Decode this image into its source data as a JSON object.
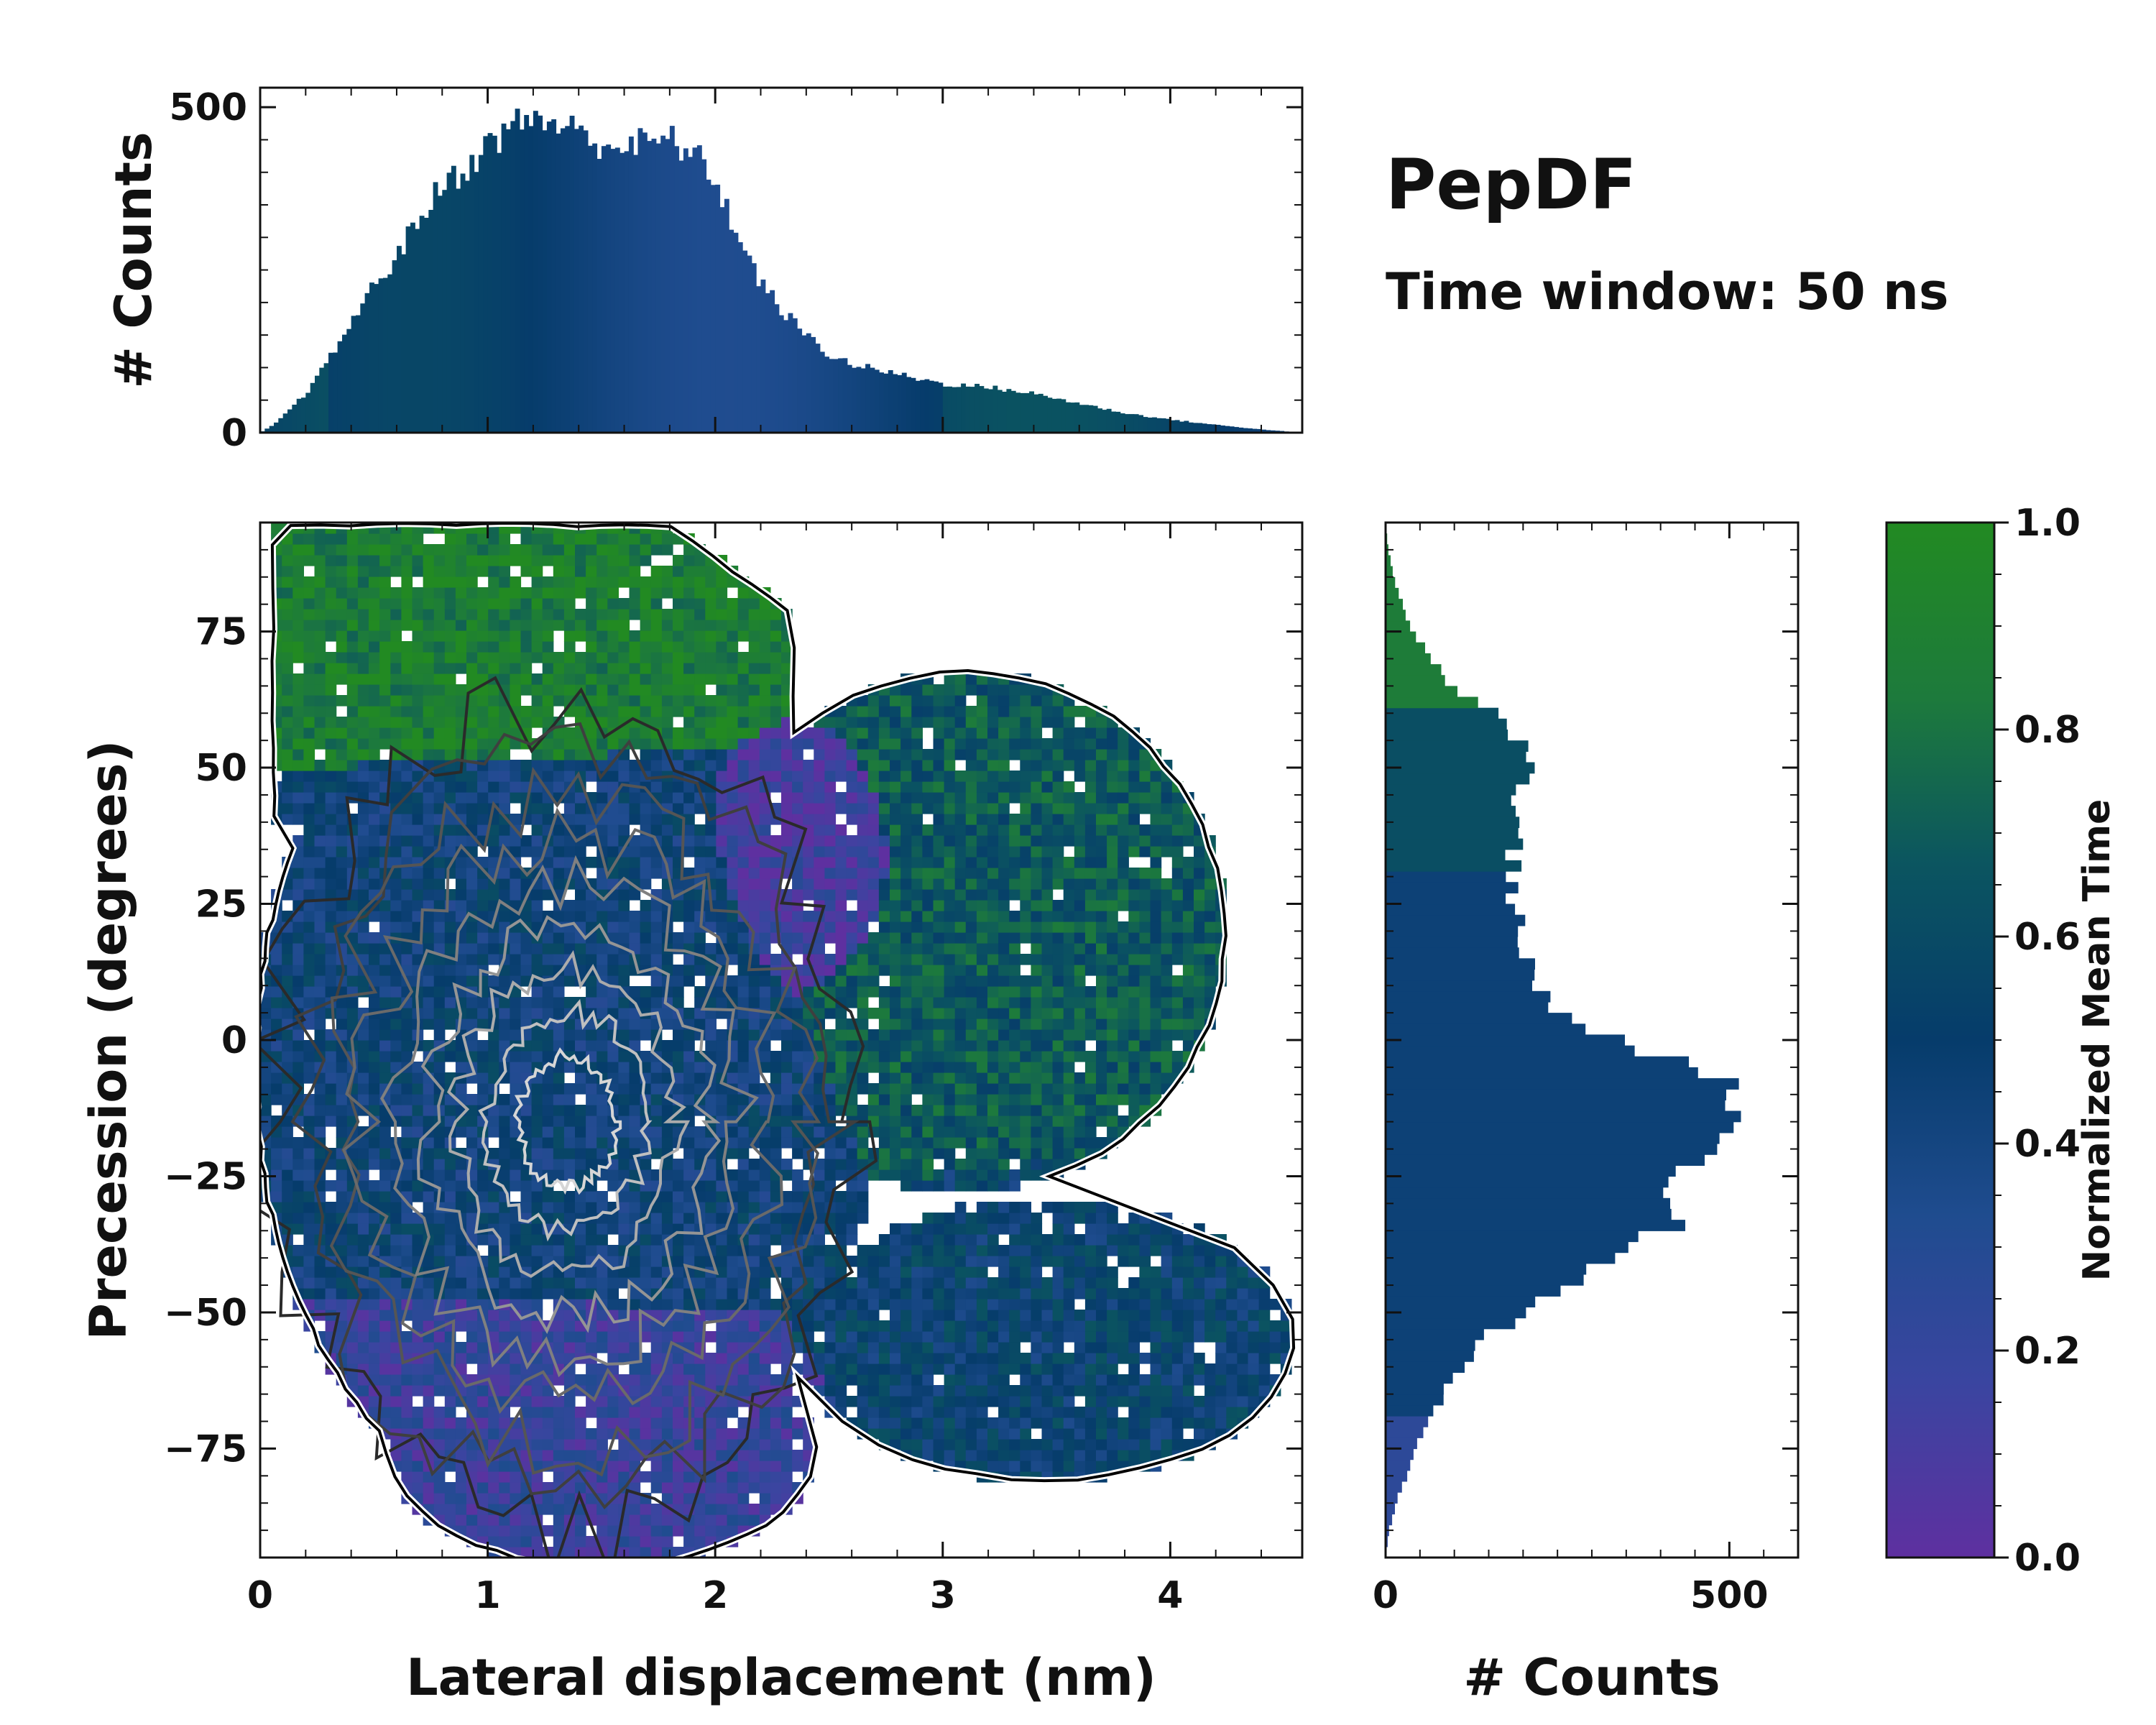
{
  "chart_data": [
    {
      "id": "top-histogram",
      "type": "bar",
      "description_axis": "Lateral displacement histogram",
      "ylabel": "# Counts",
      "xlim": [
        0,
        4.58
      ],
      "ylim": [
        0,
        530
      ],
      "yticks": [
        0,
        500
      ],
      "bin_width": 0.02,
      "profile_x": [
        0.0,
        0.05,
        0.1,
        0.2,
        0.3,
        0.4,
        0.5,
        0.6,
        0.7,
        0.8,
        0.9,
        1.0,
        1.1,
        1.2,
        1.3,
        1.4,
        1.5,
        1.6,
        1.7,
        1.8,
        1.9,
        2.0,
        2.1,
        2.2,
        2.3,
        2.4,
        2.5,
        2.6,
        2.8,
        3.0,
        3.2,
        3.4,
        3.6,
        3.8,
        4.0,
        4.2,
        4.4,
        4.58
      ],
      "profile_counts": [
        0,
        10,
        25,
        60,
        110,
        170,
        225,
        270,
        330,
        380,
        405,
        440,
        470,
        485,
        475,
        460,
        445,
        440,
        445,
        450,
        430,
        390,
        300,
        230,
        185,
        150,
        120,
        105,
        90,
        75,
        70,
        60,
        45,
        30,
        20,
        12,
        5,
        0
      ],
      "color_note": "bars colored by normalized mean time"
    },
    {
      "id": "main-heatmap",
      "type": "heatmap",
      "xlabel": "Lateral displacement (nm)",
      "ylabel": "Precession (degrees)",
      "xlim": [
        0,
        4.58
      ],
      "ylim": [
        -95,
        95
      ],
      "xticks": [
        0,
        1,
        2,
        3,
        4
      ],
      "yticks": [
        -75,
        -50,
        -25,
        0,
        25,
        50,
        75
      ],
      "ytick_labels": [
        "−75",
        "−50",
        "−25",
        "0",
        "25",
        "50",
        "75"
      ],
      "color_value": "Normalized Mean Time",
      "regions": [
        {
          "name": "upper-green",
          "x_range": [
            0.1,
            2.4
          ],
          "y_range": [
            55,
            95
          ],
          "mean_time": 0.88
        },
        {
          "name": "core-blue",
          "x_range": [
            0.3,
            2.5
          ],
          "y_range": [
            -55,
            45
          ],
          "mean_time": 0.45
        },
        {
          "name": "purple-patch",
          "x_range": [
            2.0,
            3.0
          ],
          "y_range": [
            5,
            55
          ],
          "mean_time": 0.12
        },
        {
          "name": "right-teal",
          "x_range": [
            2.2,
            4.2
          ],
          "y_range": [
            -20,
            65
          ],
          "mean_time": 0.68
        },
        {
          "name": "lower-right-blue",
          "x_range": [
            2.5,
            4.5
          ],
          "y_range": [
            -80,
            -25
          ],
          "mean_time": 0.5
        },
        {
          "name": "lower-purple",
          "x_range": [
            0.3,
            2.4
          ],
          "y_range": [
            -95,
            -45
          ],
          "mean_time": 0.18
        }
      ],
      "density_peak": {
        "x": 1.35,
        "y": -15
      },
      "contours": "white-to-black density contours"
    },
    {
      "id": "right-histogram",
      "type": "bar",
      "orientation": "horizontal",
      "xlabel": "# Counts",
      "xlim": [
        0,
        600
      ],
      "xticks": [
        0,
        500
      ],
      "bin_width": 2,
      "profile_y": [
        -95,
        -90,
        -85,
        -80,
        -75,
        -70,
        -65,
        -60,
        -55,
        -50,
        -45,
        -40,
        -35,
        -30,
        -25,
        -20,
        -15,
        -10,
        -5,
        0,
        5,
        10,
        15,
        20,
        25,
        30,
        35,
        40,
        45,
        50,
        55,
        60,
        65,
        70,
        75,
        80,
        85,
        90,
        95
      ],
      "profile_counts": [
        0,
        5,
        15,
        30,
        45,
        60,
        85,
        110,
        145,
        195,
        260,
        330,
        400,
        430,
        420,
        470,
        500,
        520,
        450,
        350,
        250,
        230,
        210,
        205,
        190,
        180,
        190,
        200,
        180,
        215,
        200,
        160,
        90,
        70,
        40,
        25,
        12,
        4,
        0
      ],
      "color_note": "bars colored by normalized mean time"
    },
    {
      "id": "colorbar",
      "type": "colorbar",
      "label": "Normalized Mean Time",
      "range": [
        0.0,
        1.0
      ],
      "ticks": [
        "0.0",
        "0.2",
        "0.4",
        "0.6",
        "0.8",
        "1.0"
      ],
      "tick_values": [
        0.0,
        0.2,
        0.4,
        0.6,
        0.8,
        1.0
      ],
      "colormap": [
        "#5e30a0",
        "#3a45a0",
        "#1f4c8f",
        "#063c6b",
        "#0b5560",
        "#1d7a3c",
        "#228a22"
      ]
    }
  ],
  "title": "PepDF",
  "subtitle": "Time window: 50 ns"
}
